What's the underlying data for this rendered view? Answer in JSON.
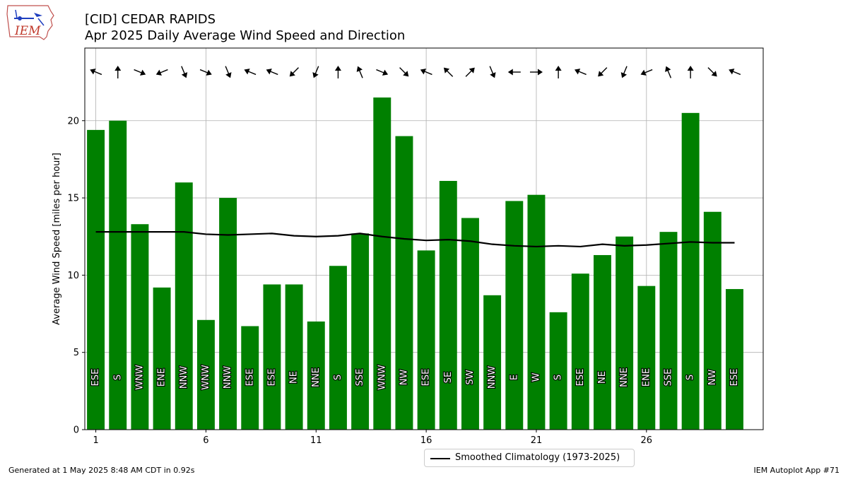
{
  "header": {
    "title": "[CID] CEDAR RAPIDS",
    "subtitle": "Apr 2025 Daily Average Wind Speed and Direction"
  },
  "logo": {
    "text": "IEM",
    "icon": "iowa-state-outline-logo-icon"
  },
  "footer": {
    "left": "Generated at 1 May 2025 8:48 AM CDT in 0.92s",
    "right": "IEM Autoplot App #71"
  },
  "legend": {
    "label": "Smoothed Climatology (1973-2025)",
    "position": "bottom-center"
  },
  "colors": {
    "bar": "#008000",
    "climo_line": "#000000",
    "arrow": "#000000",
    "grid": "#b0b0b0"
  },
  "chart_data": {
    "type": "bar",
    "ylabel": "Average Wind Speed [miles per hour]",
    "xlim": [
      0.5,
      31.3
    ],
    "ylim": [
      0,
      24.7
    ],
    "xticks": [
      1,
      6,
      11,
      16,
      21,
      26
    ],
    "yticks": [
      0,
      5,
      10,
      15,
      20
    ],
    "grid": true,
    "days": [
      1,
      2,
      3,
      4,
      5,
      6,
      7,
      8,
      9,
      10,
      11,
      12,
      13,
      14,
      15,
      16,
      17,
      18,
      19,
      20,
      21,
      22,
      23,
      24,
      25,
      26,
      27,
      28,
      29,
      30
    ],
    "values": [
      19.4,
      20.0,
      13.3,
      9.2,
      16.0,
      7.1,
      15.0,
      6.7,
      9.4,
      9.4,
      7.0,
      10.6,
      12.7,
      21.5,
      19.0,
      11.6,
      16.1,
      13.7,
      8.7,
      14.8,
      15.2,
      7.6,
      10.1,
      11.3,
      12.5,
      9.3,
      12.8,
      20.5,
      14.1,
      9.1
    ],
    "directions": [
      "ESE",
      "S",
      "WNW",
      "ENE",
      "NNW",
      "WNW",
      "NNW",
      "ESE",
      "ESE",
      "NE",
      "NNE",
      "S",
      "SSE",
      "WNW",
      "NW",
      "ESE",
      "SE",
      "SW",
      "NNW",
      "E",
      "W",
      "S",
      "ESE",
      "NE",
      "NNE",
      "ENE",
      "SSE",
      "S",
      "NW",
      "ESE"
    ],
    "series": [
      {
        "name": "Smoothed Climatology (1973-2025)",
        "type": "line",
        "values": [
          12.8,
          12.8,
          12.8,
          12.8,
          12.8,
          12.65,
          12.6,
          12.65,
          12.7,
          12.55,
          12.5,
          12.55,
          12.7,
          12.5,
          12.35,
          12.25,
          12.3,
          12.2,
          12.0,
          11.9,
          11.85,
          11.9,
          11.85,
          12.0,
          11.9,
          11.95,
          12.05,
          12.15,
          12.1,
          12.1
        ]
      }
    ]
  }
}
